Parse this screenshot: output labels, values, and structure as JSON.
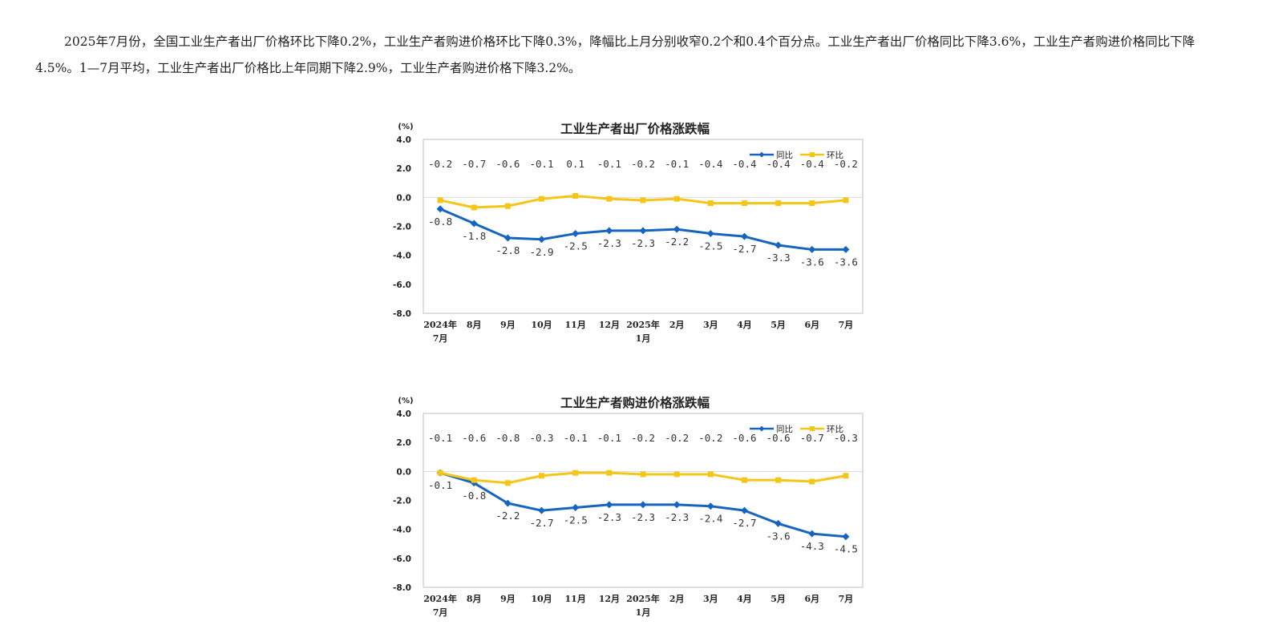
{
  "paragraph": "2025年7月份，全国工业生产者出厂价格环比下降0.2%，工业生产者购进价格环比下降0.3%，降幅比上月分别收窄0.2个和0.4个百分点。工业生产者出厂价格同比下降3.6%，工业生产者购进价格同比下降4.5%。1—7月平均，工业生产者出厂价格比上年同期下降2.9%，工业生产者购进价格下降3.2%。",
  "colors": {
    "yoy": "#1565C0",
    "mom": "#F5C518",
    "grid": "#D9D9D9",
    "frame": "#BFBFBF"
  },
  "chart_data": [
    {
      "type": "line",
      "title": "工业生产者出厂价格涨跌幅",
      "unit": "(%)",
      "categories": [
        [
          "2024年",
          "7月"
        ],
        [
          "8月"
        ],
        [
          "9月"
        ],
        [
          "10月"
        ],
        [
          "11月"
        ],
        [
          "12月"
        ],
        [
          "2025年",
          "1月"
        ],
        [
          "2月"
        ],
        [
          "3月"
        ],
        [
          "4月"
        ],
        [
          "5月"
        ],
        [
          "6月"
        ],
        [
          "7月"
        ]
      ],
      "ylim": [
        -8.0,
        4.0
      ],
      "yticks": [
        "4.0",
        "2.0",
        "0.0",
        "-2.0",
        "-4.0",
        "-6.0",
        "-8.0"
      ],
      "legend_position": "top-right",
      "series": [
        {
          "name": "同比",
          "color_key": "yoy",
          "marker": "diamond",
          "values": [
            -0.8,
            -1.8,
            -2.8,
            -2.9,
            -2.5,
            -2.3,
            -2.3,
            -2.2,
            -2.5,
            -2.7,
            -3.3,
            -3.6,
            -3.6
          ],
          "labels": [
            "-0.8",
            "-1.8",
            "-2.8",
            "-2.9",
            "-2.5",
            "-2.3",
            "-2.3",
            "-2.2",
            "-2.5",
            "-2.7",
            "-3.3",
            "-3.6",
            "-3.6"
          ]
        },
        {
          "name": "环比",
          "color_key": "mom",
          "marker": "square",
          "values": [
            -0.2,
            -0.7,
            -0.6,
            -0.1,
            0.1,
            -0.1,
            -0.2,
            -0.1,
            -0.4,
            -0.4,
            -0.4,
            -0.4,
            -0.2
          ],
          "labels": [
            "-0.2",
            "-0.7",
            "-0.6",
            "-0.1",
            "0.1",
            "-0.1",
            "-0.2",
            "-0.1",
            "-0.4",
            "-0.4",
            "-0.4",
            "-0.4",
            "-0.2"
          ]
        }
      ]
    },
    {
      "type": "line",
      "title": "工业生产者购进价格涨跌幅",
      "unit": "(%)",
      "categories": [
        [
          "2024年",
          "7月"
        ],
        [
          "8月"
        ],
        [
          "9月"
        ],
        [
          "10月"
        ],
        [
          "11月"
        ],
        [
          "12月"
        ],
        [
          "2025年",
          "1月"
        ],
        [
          "2月"
        ],
        [
          "3月"
        ],
        [
          "4月"
        ],
        [
          "5月"
        ],
        [
          "6月"
        ],
        [
          "7月"
        ]
      ],
      "ylim": [
        -8.0,
        4.0
      ],
      "yticks": [
        "4.0",
        "2.0",
        "0.0",
        "-2.0",
        "-4.0",
        "-6.0",
        "-8.0"
      ],
      "legend_position": "top-right",
      "series": [
        {
          "name": "同比",
          "color_key": "yoy",
          "marker": "diamond",
          "values": [
            -0.1,
            -0.8,
            -2.2,
            -2.7,
            -2.5,
            -2.3,
            -2.3,
            -2.3,
            -2.4,
            -2.7,
            -3.6,
            -4.3,
            -4.5
          ],
          "labels": [
            "-0.1",
            "-0.8",
            "-2.2",
            "-2.7",
            "-2.5",
            "-2.3",
            "-2.3",
            "-2.3",
            "-2.4",
            "-2.7",
            "-3.6",
            "-4.3",
            "-4.5"
          ]
        },
        {
          "name": "环比",
          "color_key": "mom",
          "marker": "square",
          "values": [
            -0.1,
            -0.6,
            -0.8,
            -0.3,
            -0.1,
            -0.1,
            -0.2,
            -0.2,
            -0.2,
            -0.6,
            -0.6,
            -0.7,
            -0.3
          ],
          "labels": [
            "-0.1",
            "-0.6",
            "-0.8",
            "-0.3",
            "-0.1",
            "-0.1",
            "-0.2",
            "-0.2",
            "-0.2",
            "-0.6",
            "-0.6",
            "-0.7",
            "-0.3"
          ]
        }
      ]
    }
  ]
}
